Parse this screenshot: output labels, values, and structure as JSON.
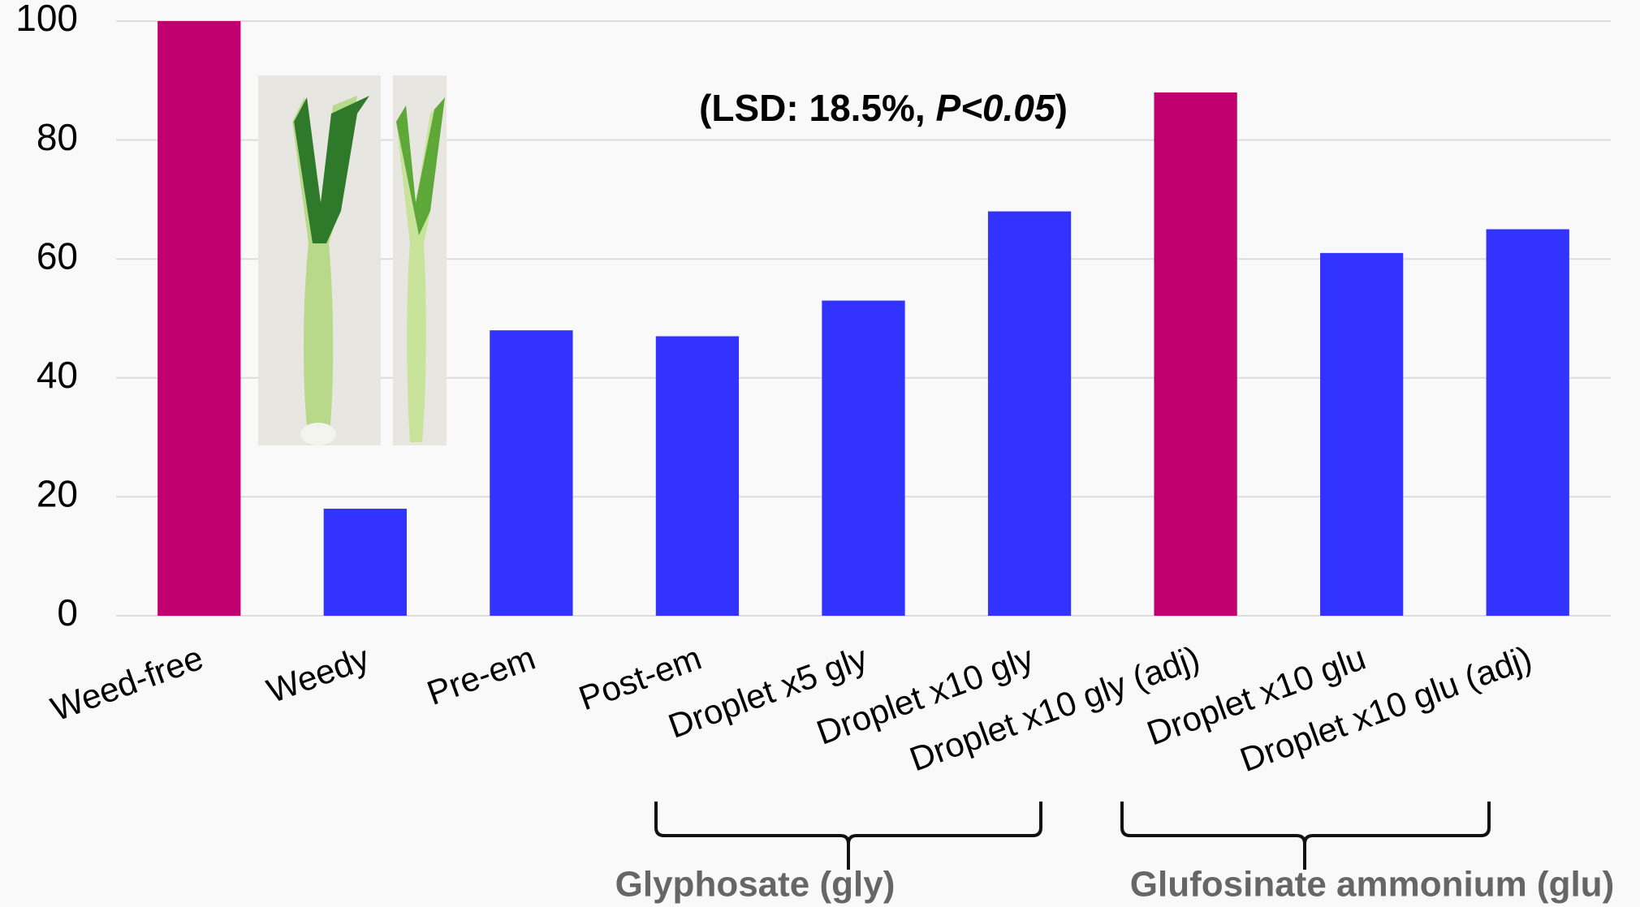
{
  "chart_data": {
    "type": "bar",
    "annotation": [
      "(LSD: 18.5%, ",
      "P<0.05",
      ")"
    ],
    "categories": [
      "Weed-free",
      "Weedy",
      "Pre-em",
      "Post-em",
      "Droplet x5 gly",
      "Droplet x10 gly",
      "Droplet x10 gly (adj)",
      "Droplet x10 glu",
      "Droplet x10 glu (adj)"
    ],
    "values": [
      100,
      18,
      48,
      47,
      53,
      68,
      88,
      61,
      65
    ],
    "colors": [
      "#c0006e",
      "#3333ff",
      "#3333ff",
      "#3333ff",
      "#3333ff",
      "#3333ff",
      "#c0006e",
      "#3333ff",
      "#3333ff"
    ],
    "ylim": [
      0,
      100
    ],
    "yticks": [
      0,
      20,
      40,
      60,
      80,
      100
    ],
    "grid": true,
    "groups": [
      "Glyphosate (gly)",
      "Glufosinate ammonium (glu)"
    ]
  }
}
